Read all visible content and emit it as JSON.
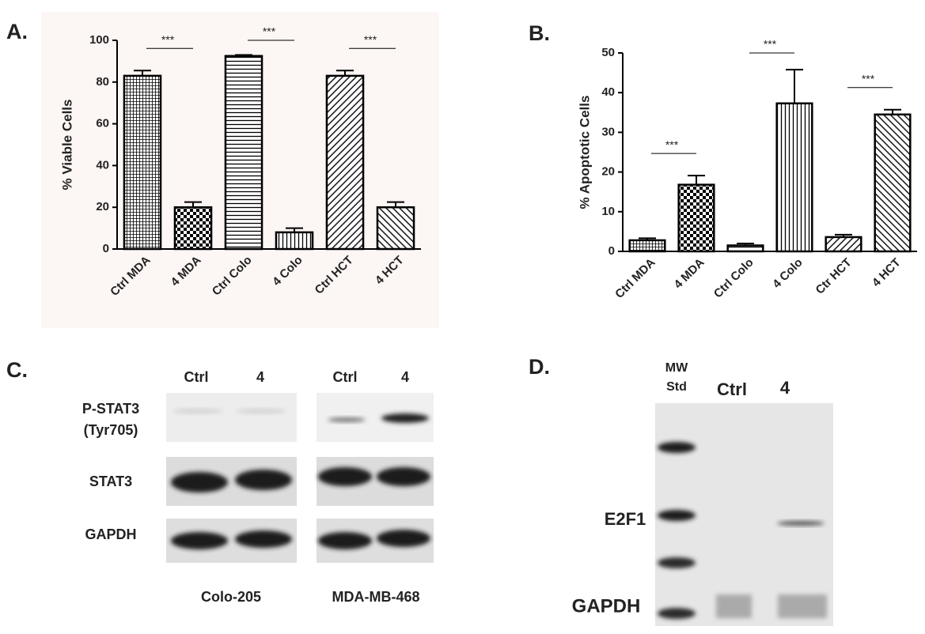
{
  "chart_data": [
    {
      "type": "bar",
      "panel_label": "A.",
      "y_label": "% Viable Cells",
      "categories": [
        "Ctrl MDA",
        "4 MDA",
        "Ctrl Colo",
        "4 Colo",
        "Ctrl HCT",
        "4 HCT"
      ],
      "values": [
        83,
        20,
        92.5,
        8,
        83,
        20
      ],
      "errors": [
        2.5,
        2.5,
        0.5,
        2,
        2.5,
        2.5
      ],
      "color": "#000000",
      "ylim": [
        0,
        100
      ],
      "yticks": [
        0,
        20,
        40,
        60,
        80,
        100
      ],
      "annotations": [
        "***",
        "***",
        "***"
      ]
    },
    {
      "type": "bar",
      "panel_label": "B.",
      "y_label": "% Apoptotic Cells",
      "categories": [
        "Ctrl MDA",
        "4 MDA",
        "Ctrl Colo",
        "4 Colo",
        "Ctr HCT",
        "4 HCT"
      ],
      "values": [
        2.8,
        16.8,
        1.5,
        37.3,
        3.6,
        34.5
      ],
      "errors": [
        0.5,
        2.3,
        0.5,
        8.5,
        0.6,
        1.2
      ],
      "color": "#000000",
      "ylim": [
        0,
        50
      ],
      "yticks": [
        0,
        10,
        20,
        30,
        40,
        50
      ],
      "annotations": [
        "***",
        "***",
        "***"
      ]
    }
  ],
  "panel_c": {
    "label": "C.",
    "lanes": [
      "Ctrl",
      "4",
      "Ctrl",
      "4"
    ],
    "rows": [
      [
        "P-STAT3",
        "(Tyr705)"
      ],
      [
        "STAT3"
      ],
      [
        "GAPDH"
      ]
    ],
    "cell_lines": [
      "Colo-205",
      "MDA-MB-468"
    ]
  },
  "panel_d": {
    "label": "D.",
    "marker": [
      "MW",
      "Std"
    ],
    "lanes": [
      "Ctrl",
      "4"
    ],
    "rows": [
      "E2F1",
      "GAPDH"
    ]
  }
}
